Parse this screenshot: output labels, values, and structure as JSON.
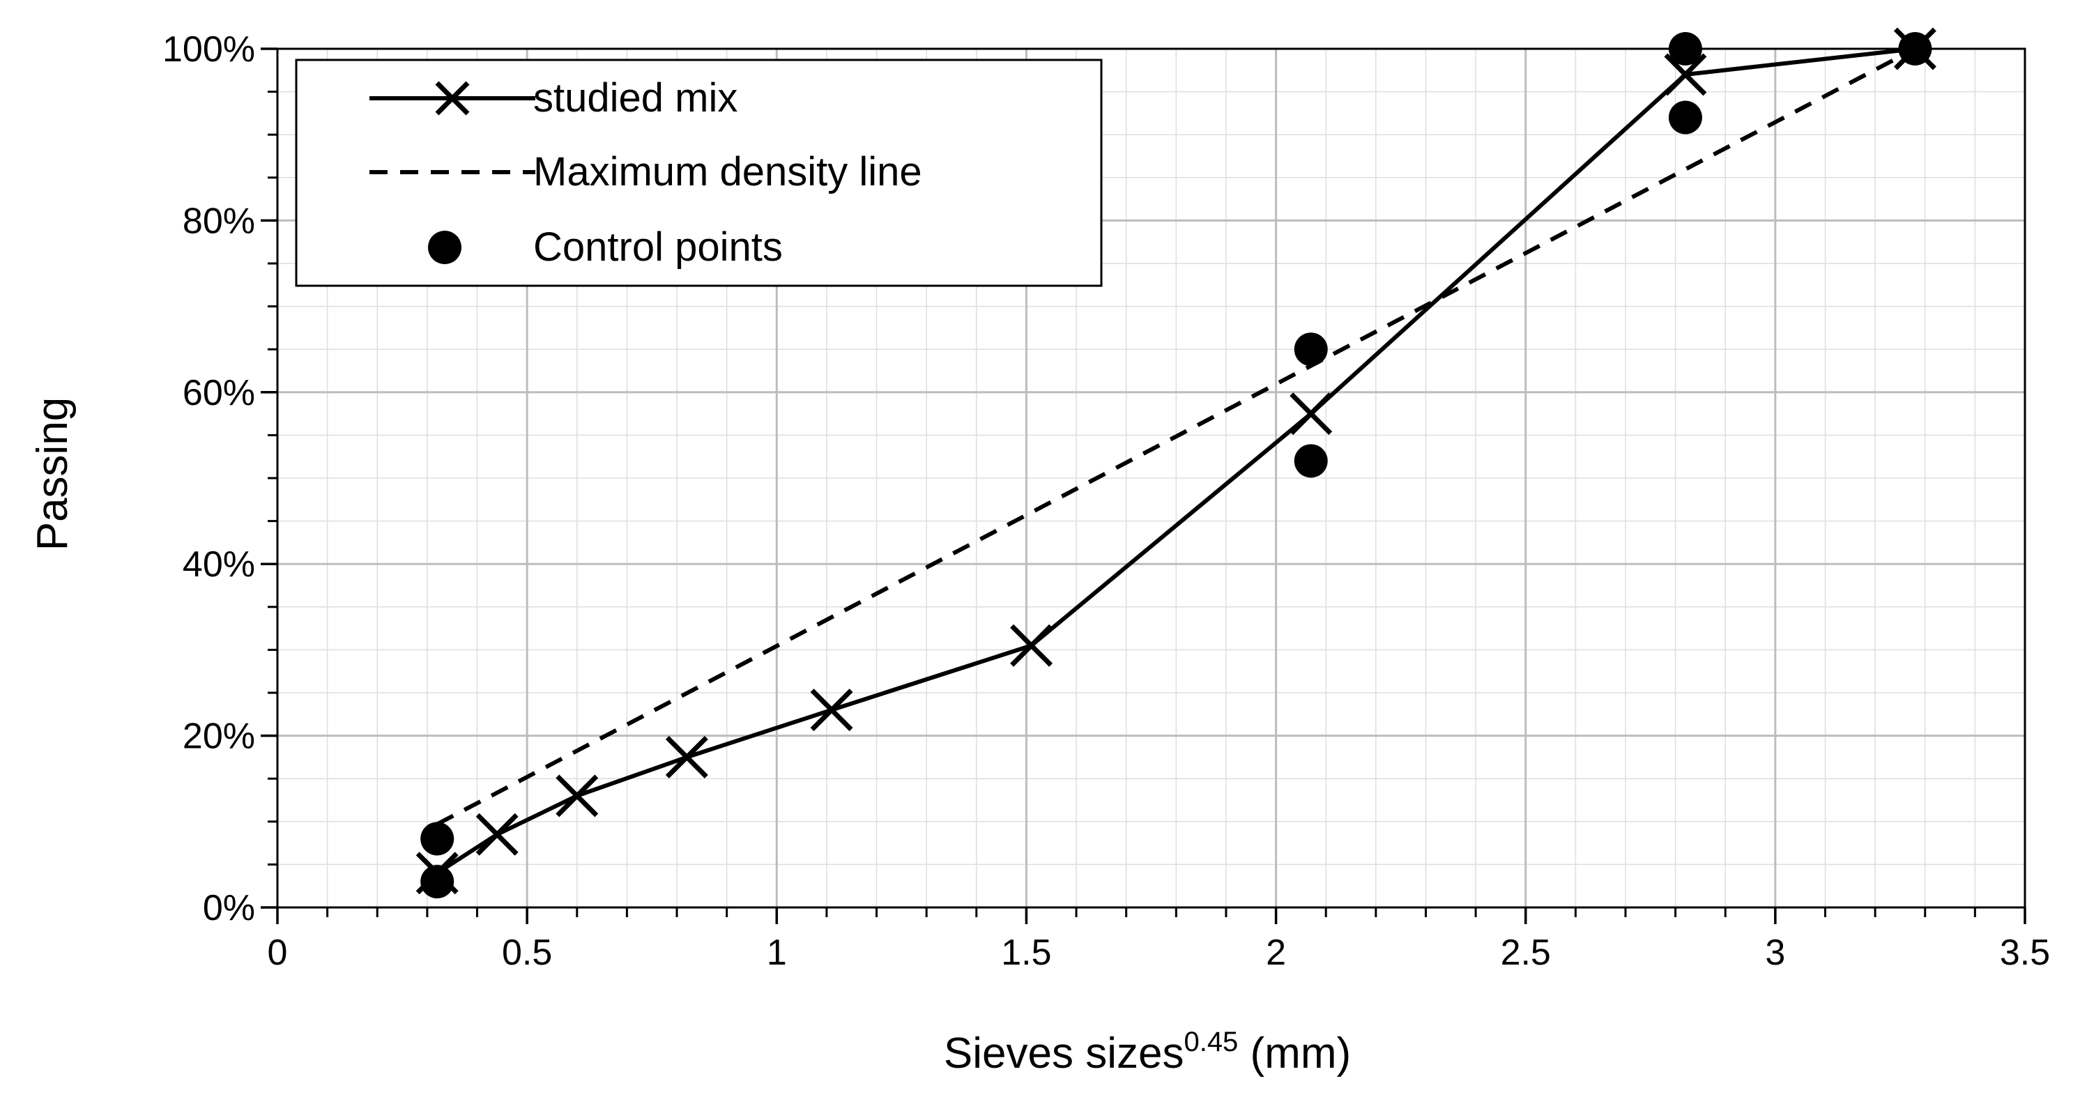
{
  "chart_data": {
    "type": "line",
    "title": "",
    "xlabel": "Sieves sizes",
    "xlabel_superscript": "0.45",
    "xlabel_unit": " (mm)",
    "ylabel": "Passing",
    "xlim": [
      0,
      3.5
    ],
    "ylim": [
      0,
      1
    ],
    "x_ticks": [
      0,
      0.5,
      1,
      1.5,
      2,
      2.5,
      3,
      3.5
    ],
    "x_tick_labels": [
      "0",
      "0.5",
      "1",
      "1.5",
      "2",
      "2.5",
      "3",
      "3.5"
    ],
    "y_ticks": [
      0,
      0.2,
      0.4,
      0.6,
      0.8,
      1.0
    ],
    "y_tick_labels": [
      "0%",
      "20%",
      "40%",
      "60%",
      "80%",
      "100%"
    ],
    "grid": true,
    "legend_position": "top-left",
    "series": [
      {
        "name": "studied mix",
        "style": "solid",
        "marker": "x",
        "x": [
          0.32,
          0.44,
          0.6,
          0.82,
          1.11,
          1.51,
          2.07,
          2.82,
          3.28
        ],
        "y": [
          0.04,
          0.085,
          0.13,
          0.175,
          0.23,
          0.305,
          0.575,
          0.97,
          1.0
        ]
      },
      {
        "name": "Maximum density line",
        "style": "dashed",
        "marker": "none",
        "x": [
          0.32,
          3.28
        ],
        "y": [
          0.097,
          1.0
        ]
      },
      {
        "name": "Control points",
        "style": "none",
        "marker": "circle",
        "x": [
          0.32,
          0.32,
          2.07,
          2.07,
          2.82,
          2.82,
          3.28
        ],
        "y": [
          0.08,
          0.03,
          0.65,
          0.52,
          1.0,
          0.92,
          1.0
        ]
      }
    ]
  },
  "legend": {
    "items": [
      "studied mix",
      "Maximum density line",
      "Control points"
    ]
  }
}
